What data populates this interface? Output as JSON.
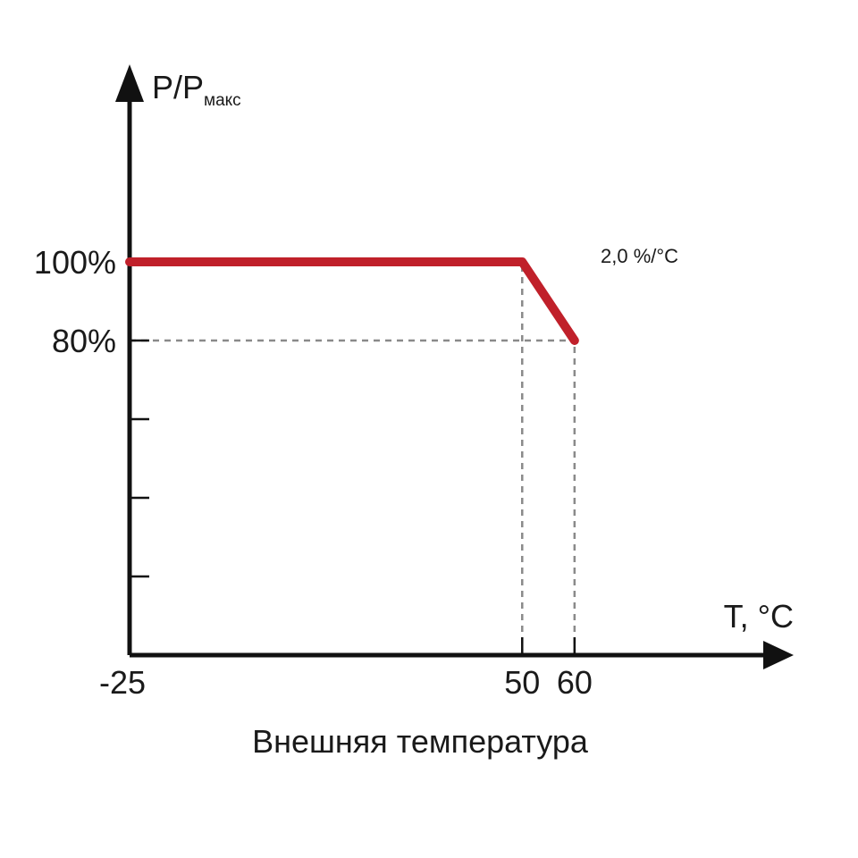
{
  "chart_data": {
    "type": "line",
    "title": "",
    "xlabel": "Внешняя температура",
    "ylabel": {
      "main": "P/P",
      "subscript": "макс"
    },
    "x_unit_label": "T, °C",
    "x_ticks": [
      "-25",
      "50",
      "60"
    ],
    "x_tick_values": [
      -25,
      50,
      60
    ],
    "y_ticks": [
      "100%",
      "80%"
    ],
    "y_tick_values": [
      100,
      80
    ],
    "y_minor_tick_values": [
      60,
      40,
      20
    ],
    "xlim": [
      -25,
      67
    ],
    "ylim": [
      0,
      125
    ],
    "series": [
      {
        "x": [
          -25,
          50,
          60
        ],
        "y": [
          100,
          100,
          80
        ]
      }
    ],
    "reference_lines": [
      {
        "kind": "vertical",
        "x": 50,
        "y_from": 0,
        "y_to": 100
      },
      {
        "kind": "vertical",
        "x": 60,
        "y_from": 0,
        "y_to": 80
      },
      {
        "kind": "horizontal",
        "y": 80,
        "x_from": -25,
        "x_to": 60
      }
    ],
    "annotations": [
      {
        "text": "2,0 %/°C",
        "x": 52,
        "y": 101
      }
    ],
    "colors": {
      "line": "#c0202a",
      "axis": "#111111",
      "guide": "#8a8a8a"
    },
    "grid": false,
    "legend": "none"
  }
}
